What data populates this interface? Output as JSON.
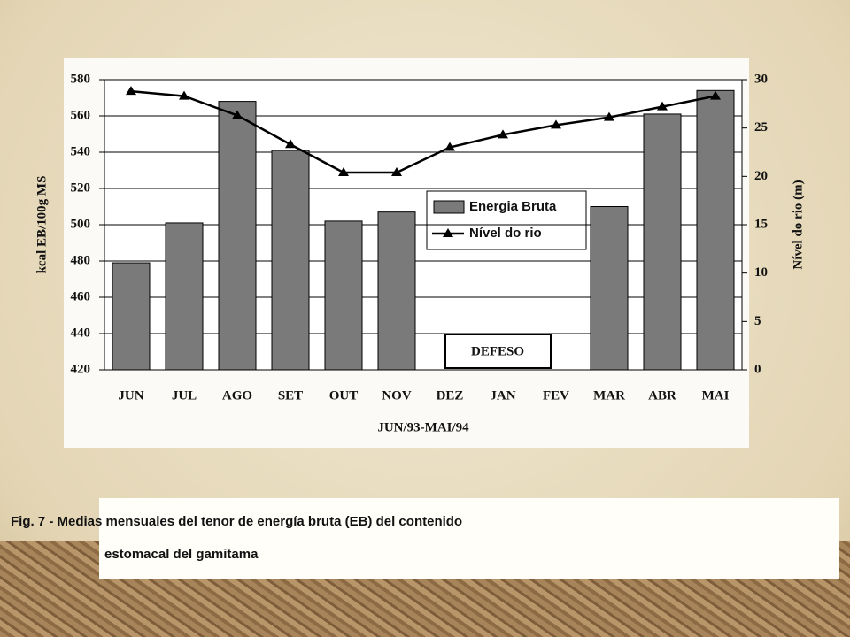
{
  "chart_data": {
    "type": "bar",
    "categories": [
      "JUN",
      "JUL",
      "AGO",
      "SET",
      "OUT",
      "NOV",
      "DEZ",
      "JAN",
      "FEV",
      "MAR",
      "ABR",
      "MAI"
    ],
    "series": [
      {
        "name": "Energia Bruta",
        "type": "bar",
        "color": "#7a7a7a",
        "values": [
          479,
          501,
          568,
          541,
          502,
          507,
          null,
          null,
          null,
          510,
          561,
          574
        ]
      },
      {
        "name": "Nível do rio",
        "type": "line",
        "axis": "y2",
        "color": "#000000",
        "values": [
          28.8,
          28.3,
          26.3,
          23.3,
          20.4,
          20.4,
          23.0,
          24.3,
          25.3,
          26.1,
          27.2,
          28.3
        ]
      }
    ],
    "ylabel": "kcal EB/100g MS",
    "y2label": "Nível do rio (m)",
    "xlabel": "JUN/93-MAI/94",
    "ylim": [
      420,
      580
    ],
    "yticks": [
      420,
      440,
      460,
      480,
      500,
      520,
      540,
      560,
      580
    ],
    "y2lim": [
      0,
      30
    ],
    "y2ticks": [
      0,
      5,
      10,
      15,
      20,
      25,
      30
    ],
    "grid": true,
    "annotation": "DEFESO",
    "caption": [
      "Fig. 7 - Medias mensuales del tenor de energía bruta (EB) del contenido",
      "estomacal del gamitama"
    ]
  }
}
